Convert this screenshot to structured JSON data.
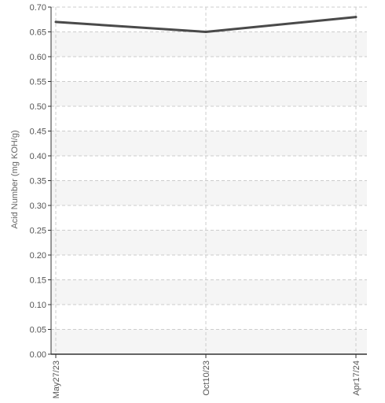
{
  "chart_data": {
    "type": "line",
    "title": "",
    "xlabel": "",
    "ylabel": "Acid Number (mg KOH/g)",
    "x": [
      "May27/23",
      "Oct10/23",
      "Apr17/24"
    ],
    "series": [
      {
        "values": [
          0.67,
          0.65,
          0.68
        ]
      }
    ],
    "ylim": [
      0,
      0.7
    ],
    "yticks": [
      "0.00",
      "0.05",
      "0.10",
      "0.15",
      "0.20",
      "0.25",
      "0.30",
      "0.35",
      "0.40",
      "0.45",
      "0.50",
      "0.55",
      "0.60",
      "0.65",
      "0.70"
    ],
    "grid": true,
    "legend": "none",
    "colors": {
      "line": "#4a4a4a",
      "band": "#f5f5f5",
      "grid": "#cccccc",
      "axis": "#333333"
    }
  }
}
